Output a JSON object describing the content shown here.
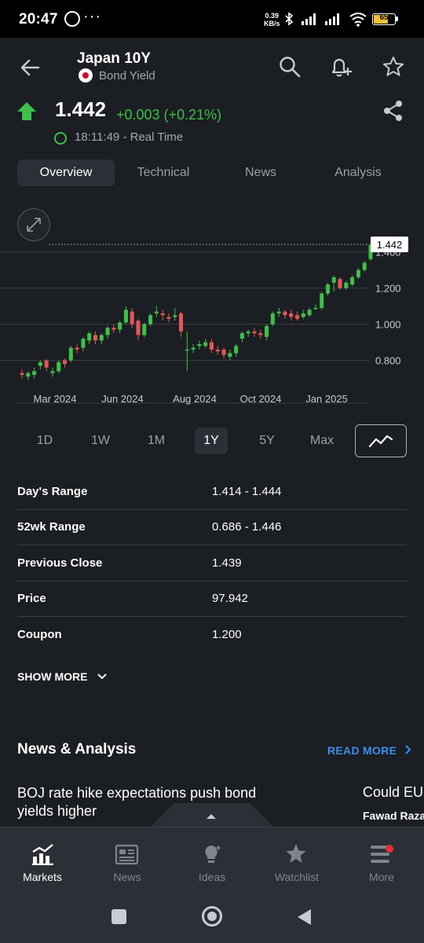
{
  "status": {
    "time": "20:47",
    "dots": "···",
    "speed_top": "0.39",
    "speed_bottom": "KB/s",
    "battery": "65"
  },
  "header": {
    "title": "Japan 10Y",
    "subtitle": "Bond Yield",
    "back_icon": "arrow-left-icon",
    "icons": [
      "search-icon",
      "add-alert-icon",
      "star-icon",
      "share-icon"
    ]
  },
  "quote": {
    "price": "1.442",
    "change": "+0.003 (+0.21%)",
    "time": "18:11:49 - Real Time",
    "up_color": "#3fbf4a",
    "down_color": "#e2575a"
  },
  "tabs": [
    {
      "label": "Overview",
      "active": true
    },
    {
      "label": "Technical"
    },
    {
      "label": "News"
    },
    {
      "label": "Analysis"
    }
  ],
  "chart_data": {
    "type": "candlestick",
    "x_ticks": [
      "Mar 2024",
      "Jun 2024",
      "Aug 2024",
      "Oct 2024",
      "Jan 2025"
    ],
    "y_ticks": [
      "0.800",
      "1.000",
      "1.200",
      "1.400"
    ],
    "ylim": [
      0.62,
      1.52
    ],
    "last_value_label": "1.442",
    "grid": true,
    "candles": [
      {
        "o": 0.73,
        "c": 0.72,
        "h": 0.75,
        "l": 0.7
      },
      {
        "o": 0.71,
        "c": 0.73,
        "h": 0.74,
        "l": 0.69
      },
      {
        "o": 0.72,
        "c": 0.74,
        "h": 0.76,
        "l": 0.7
      },
      {
        "o": 0.77,
        "c": 0.79,
        "h": 0.8,
        "l": 0.75
      },
      {
        "o": 0.8,
        "c": 0.76,
        "h": 0.81,
        "l": 0.74
      },
      {
        "o": 0.73,
        "c": 0.74,
        "h": 0.76,
        "l": 0.71
      },
      {
        "o": 0.74,
        "c": 0.79,
        "h": 0.8,
        "l": 0.73
      },
      {
        "o": 0.8,
        "c": 0.78,
        "h": 0.81,
        "l": 0.76
      },
      {
        "o": 0.8,
        "c": 0.87,
        "h": 0.88,
        "l": 0.79
      },
      {
        "o": 0.87,
        "c": 0.86,
        "h": 0.89,
        "l": 0.84
      },
      {
        "o": 0.87,
        "c": 0.92,
        "h": 0.93,
        "l": 0.85
      },
      {
        "o": 0.91,
        "c": 0.95,
        "h": 0.96,
        "l": 0.89
      },
      {
        "o": 0.94,
        "c": 0.91,
        "h": 0.96,
        "l": 0.89
      },
      {
        "o": 0.91,
        "c": 0.94,
        "h": 0.95,
        "l": 0.89
      },
      {
        "o": 0.94,
        "c": 0.98,
        "h": 0.99,
        "l": 0.92
      },
      {
        "o": 0.98,
        "c": 0.97,
        "h": 1.0,
        "l": 0.95
      },
      {
        "o": 0.97,
        "c": 1.01,
        "h": 1.02,
        "l": 0.95
      },
      {
        "o": 1.01,
        "c": 1.08,
        "h": 1.1,
        "l": 1.0
      },
      {
        "o": 1.07,
        "c": 1.0,
        "h": 1.09,
        "l": 0.98
      },
      {
        "o": 1.02,
        "c": 0.94,
        "h": 1.03,
        "l": 0.91
      },
      {
        "o": 0.94,
        "c": 1.0,
        "h": 1.01,
        "l": 0.93
      },
      {
        "o": 1.0,
        "c": 1.05,
        "h": 1.06,
        "l": 0.99
      },
      {
        "o": 1.06,
        "c": 1.07,
        "h": 1.1,
        "l": 1.04
      },
      {
        "o": 1.06,
        "c": 1.05,
        "h": 1.08,
        "l": 1.02
      },
      {
        "o": 1.04,
        "c": 1.03,
        "h": 1.06,
        "l": 1.01
      },
      {
        "o": 1.04,
        "c": 1.05,
        "h": 1.09,
        "l": 1.02
      },
      {
        "o": 1.06,
        "c": 0.96,
        "h": 1.07,
        "l": 0.93
      },
      {
        "o": 0.86,
        "c": 0.86,
        "h": 0.96,
        "l": 0.74
      },
      {
        "o": 0.86,
        "c": 0.87,
        "h": 0.89,
        "l": 0.84
      },
      {
        "o": 0.88,
        "c": 0.89,
        "h": 0.91,
        "l": 0.86
      },
      {
        "o": 0.88,
        "c": 0.9,
        "h": 0.92,
        "l": 0.87
      },
      {
        "o": 0.9,
        "c": 0.86,
        "h": 0.92,
        "l": 0.84
      },
      {
        "o": 0.86,
        "c": 0.85,
        "h": 0.88,
        "l": 0.83
      },
      {
        "o": 0.86,
        "c": 0.83,
        "h": 0.87,
        "l": 0.81
      },
      {
        "o": 0.82,
        "c": 0.84,
        "h": 0.86,
        "l": 0.8
      },
      {
        "o": 0.84,
        "c": 0.88,
        "h": 0.89,
        "l": 0.82
      },
      {
        "o": 0.92,
        "c": 0.95,
        "h": 0.96,
        "l": 0.9
      },
      {
        "o": 0.95,
        "c": 0.96,
        "h": 0.97,
        "l": 0.93
      },
      {
        "o": 0.96,
        "c": 0.95,
        "h": 0.98,
        "l": 0.93
      },
      {
        "o": 0.95,
        "c": 0.94,
        "h": 0.97,
        "l": 0.92
      },
      {
        "o": 0.93,
        "c": 0.99,
        "h": 1.0,
        "l": 0.91
      },
      {
        "o": 1.0,
        "c": 1.06,
        "h": 1.07,
        "l": 0.99
      },
      {
        "o": 1.06,
        "c": 1.07,
        "h": 1.09,
        "l": 1.04
      },
      {
        "o": 1.07,
        "c": 1.05,
        "h": 1.08,
        "l": 1.03
      },
      {
        "o": 1.06,
        "c": 1.04,
        "h": 1.08,
        "l": 1.02
      },
      {
        "o": 1.05,
        "c": 1.03,
        "h": 1.07,
        "l": 1.02
      },
      {
        "o": 1.04,
        "c": 1.06,
        "h": 1.08,
        "l": 1.03
      },
      {
        "o": 1.05,
        "c": 1.08,
        "h": 1.09,
        "l": 1.04
      },
      {
        "o": 1.09,
        "c": 1.09,
        "h": 1.11,
        "l": 1.08
      },
      {
        "o": 1.09,
        "c": 1.17,
        "h": 1.18,
        "l": 1.08
      },
      {
        "o": 1.17,
        "c": 1.22,
        "h": 1.23,
        "l": 1.16
      },
      {
        "o": 1.23,
        "c": 1.26,
        "h": 1.27,
        "l": 1.18
      },
      {
        "o": 1.25,
        "c": 1.2,
        "h": 1.26,
        "l": 1.19
      },
      {
        "o": 1.2,
        "c": 1.23,
        "h": 1.24,
        "l": 1.19
      },
      {
        "o": 1.22,
        "c": 1.26,
        "h": 1.27,
        "l": 1.21
      },
      {
        "o": 1.26,
        "c": 1.3,
        "h": 1.31,
        "l": 1.25
      },
      {
        "o": 1.3,
        "c": 1.34,
        "h": 1.35,
        "l": 1.29
      },
      {
        "o": 1.36,
        "c": 1.44,
        "h": 1.45,
        "l": 1.35
      }
    ]
  },
  "periods": [
    {
      "label": "1D"
    },
    {
      "label": "1W"
    },
    {
      "label": "1M"
    },
    {
      "label": "1Y",
      "active": true
    },
    {
      "label": "5Y"
    },
    {
      "label": "Max"
    }
  ],
  "stats": [
    {
      "key": "Day's Range",
      "value": "1.414 - 1.444"
    },
    {
      "key": "52wk Range",
      "value": "0.686 - 1.446"
    },
    {
      "key": "Previous Close",
      "value": "1.439"
    },
    {
      "key": "Price",
      "value": "97.942"
    },
    {
      "key": "Coupon",
      "value": "1.200"
    }
  ],
  "show_more": "SHOW MORE",
  "news": {
    "heading": "News & Analysis",
    "read_more": "READ MORE",
    "items": [
      {
        "headline": "BOJ rate hike expectations push bond yields higher"
      },
      {
        "headline": "Could EUR",
        "author": "Fawad Razaq"
      }
    ]
  },
  "nav": [
    {
      "label": "Markets",
      "icon": "chart-bars-icon",
      "active": true
    },
    {
      "label": "News",
      "icon": "newspaper-icon"
    },
    {
      "label": "Ideas",
      "icon": "lightbulb-icon"
    },
    {
      "label": "Watchlist",
      "icon": "star-icon"
    },
    {
      "label": "More",
      "icon": "menu-icon"
    }
  ]
}
